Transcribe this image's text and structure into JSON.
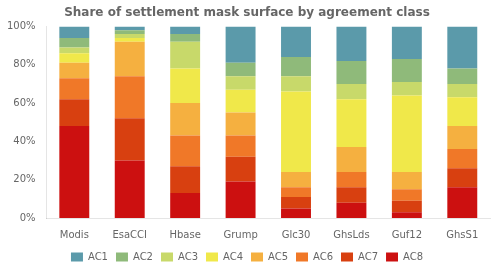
{
  "chart_data": {
    "type": "bar",
    "title": "Share of settlement mask surface by agreement class",
    "categories": [
      "Modis",
      "EsaCCI",
      "Hbase",
      "Grump",
      "Glc30",
      "GhsLds",
      "Guf12",
      "GhsS1"
    ],
    "series": [
      {
        "name": "AC1",
        "color": "#5b9aaa",
        "values": [
          0.06,
          0.02,
          0.04,
          0.19,
          0.16,
          0.18,
          0.17,
          0.22
        ]
      },
      {
        "name": "AC2",
        "color": "#8fba7a",
        "values": [
          0.05,
          0.02,
          0.04,
          0.07,
          0.1,
          0.12,
          0.12,
          0.08
        ]
      },
      {
        "name": "AC3",
        "color": "#c8d96a",
        "values": [
          0.03,
          0.02,
          0.14,
          0.07,
          0.08,
          0.08,
          0.07,
          0.07
        ]
      },
      {
        "name": "AC4",
        "color": "#f0e84a",
        "values": [
          0.05,
          0.02,
          0.18,
          0.12,
          0.42,
          0.25,
          0.4,
          0.15
        ]
      },
      {
        "name": "AC5",
        "color": "#f5b040",
        "values": [
          0.08,
          0.18,
          0.17,
          0.12,
          0.08,
          0.13,
          0.09,
          0.12
        ]
      },
      {
        "name": "AC6",
        "color": "#f07828",
        "values": [
          0.11,
          0.22,
          0.16,
          0.11,
          0.05,
          0.08,
          0.06,
          0.1
        ]
      },
      {
        "name": "AC7",
        "color": "#d84010",
        "values": [
          0.14,
          0.22,
          0.14,
          0.13,
          0.06,
          0.08,
          0.06,
          0.1
        ]
      },
      {
        "name": "AC8",
        "color": "#cc1010",
        "values": [
          0.48,
          0.3,
          0.13,
          0.19,
          0.05,
          0.08,
          0.03,
          0.16
        ]
      }
    ],
    "stacked": true,
    "ylim": [
      0,
      1
    ],
    "yticks": [
      {
        "value": 0,
        "label": "0%"
      },
      {
        "value": 0.2,
        "label": "20%"
      },
      {
        "value": 0.4,
        "label": "40%"
      },
      {
        "value": 0.6,
        "label": "60%"
      },
      {
        "value": 0.8,
        "label": "80%"
      },
      {
        "value": 1.0,
        "label": "100%"
      }
    ],
    "grid": false,
    "legend": "bottom"
  }
}
